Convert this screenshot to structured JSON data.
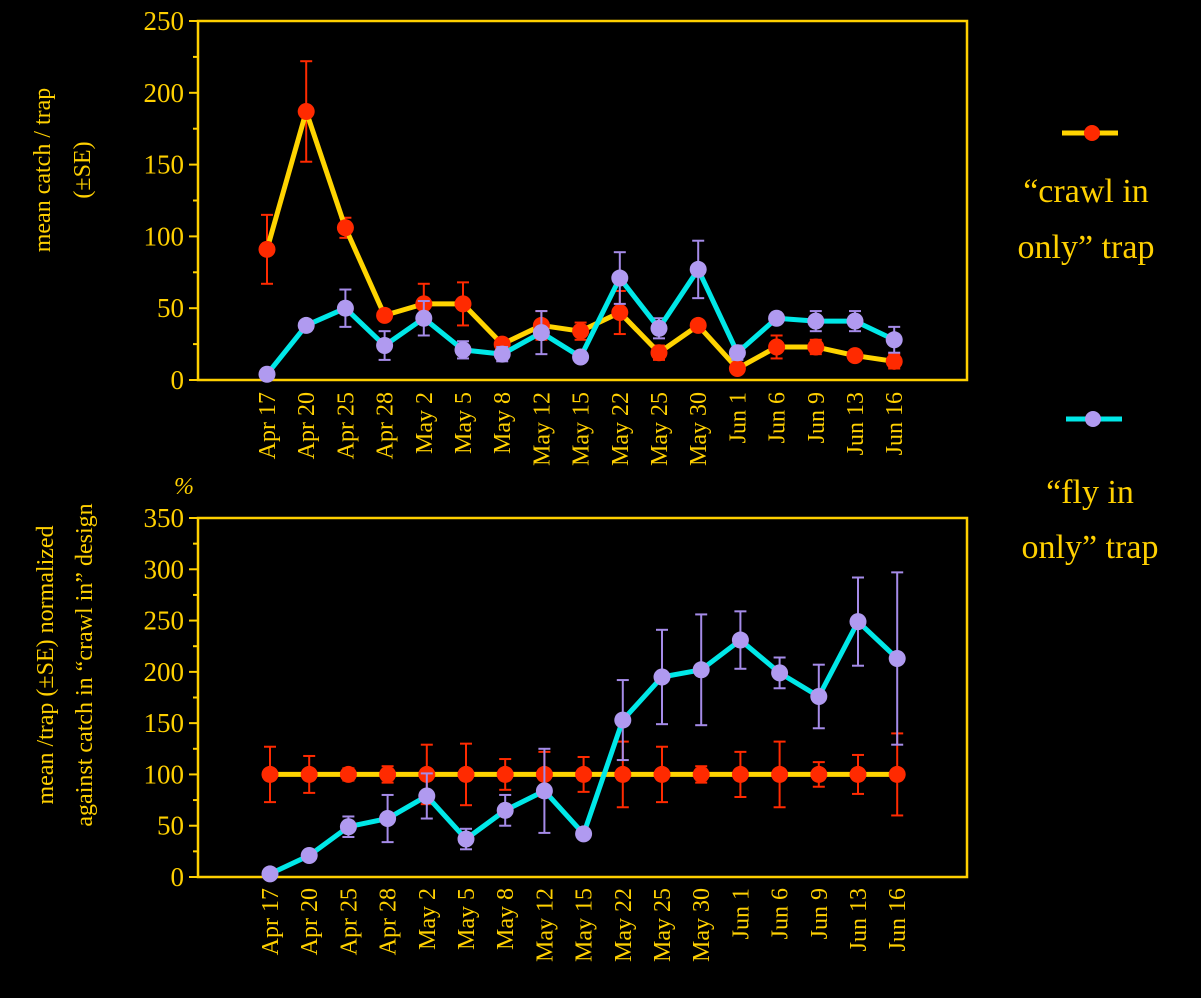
{
  "colors": {
    "background": "#000000",
    "axis": "#ffd000",
    "crawl_line": "#ffd400",
    "crawl_marker": "#ff2a00",
    "fly_line": "#00e8e8",
    "fly_marker": "#b09af0",
    "fly_error": "#a58be8",
    "crawl_error": "#ff2a00"
  },
  "legend": {
    "crawl": {
      "line1": "“crawl in",
      "line2": "only” trap"
    },
    "fly": {
      "line1": "“fly in",
      "line2": "only” trap"
    }
  },
  "chart_data": [
    {
      "type": "line",
      "ylabel": [
        "mean catch / trap",
        "(±SE)"
      ],
      "ylim": [
        0,
        250
      ],
      "yticks": [
        0,
        50,
        100,
        150,
        200,
        250
      ],
      "categories": [
        "Apr 17",
        "Apr 20",
        "Apr 25",
        "Apr 28",
        "May 2",
        "May 5",
        "May 8",
        "May 12",
        "May 15",
        "May 22",
        "May 25",
        "May 30",
        "Jun 1",
        "Jun 6",
        "Jun 9",
        "Jun 13",
        "Jun 16"
      ],
      "series": [
        {
          "key": "crawl",
          "values": [
            91,
            187,
            106,
            45,
            53,
            53,
            25,
            38,
            34,
            47,
            19,
            38,
            8,
            23,
            23,
            17,
            13
          ],
          "errors": [
            24,
            35,
            7,
            0,
            14,
            15,
            0,
            10,
            6,
            15,
            5,
            0,
            0,
            8,
            5,
            0,
            5
          ]
        },
        {
          "key": "fly",
          "values": [
            4,
            38,
            50,
            24,
            43,
            21,
            18,
            33,
            16,
            71,
            36,
            77,
            19,
            43,
            41,
            41,
            28
          ],
          "errors": [
            0,
            0,
            13,
            10,
            12,
            6,
            5,
            15,
            0,
            18,
            7,
            20,
            5,
            0,
            7,
            7,
            9
          ]
        }
      ]
    },
    {
      "type": "line",
      "ylabel": [
        "mean /trap (±SE) normalized",
        "against catch in “crawl in” design"
      ],
      "unit_label": "%",
      "ylim": [
        0,
        350
      ],
      "yticks": [
        0,
        50,
        100,
        150,
        200,
        250,
        300,
        350
      ],
      "categories": [
        "Apr 17",
        "Apr 20",
        "Apr 25",
        "Apr 28",
        "May 2",
        "May 5",
        "May 8",
        "May 12",
        "May 15",
        "May 22",
        "May 25",
        "May 30",
        "Jun 1",
        "Jun 6",
        "Jun 9",
        "Jun 13",
        "Jun 16"
      ],
      "series": [
        {
          "key": "crawl",
          "values": [
            100,
            100,
            100,
            100,
            100,
            100,
            100,
            100,
            100,
            100,
            100,
            100,
            100,
            100,
            100,
            100,
            100
          ],
          "errors": [
            27,
            18,
            6,
            8,
            29,
            30,
            15,
            22,
            17,
            32,
            27,
            8,
            22,
            32,
            12,
            19,
            40
          ]
        },
        {
          "key": "fly",
          "values": [
            3,
            21,
            49,
            57,
            79,
            37,
            65,
            84,
            42,
            153,
            195,
            202,
            231,
            199,
            176,
            249,
            213
          ],
          "errors": [
            0,
            0,
            10,
            23,
            22,
            10,
            15,
            41,
            0,
            39,
            46,
            54,
            28,
            15,
            31,
            43,
            84
          ]
        }
      ]
    }
  ]
}
